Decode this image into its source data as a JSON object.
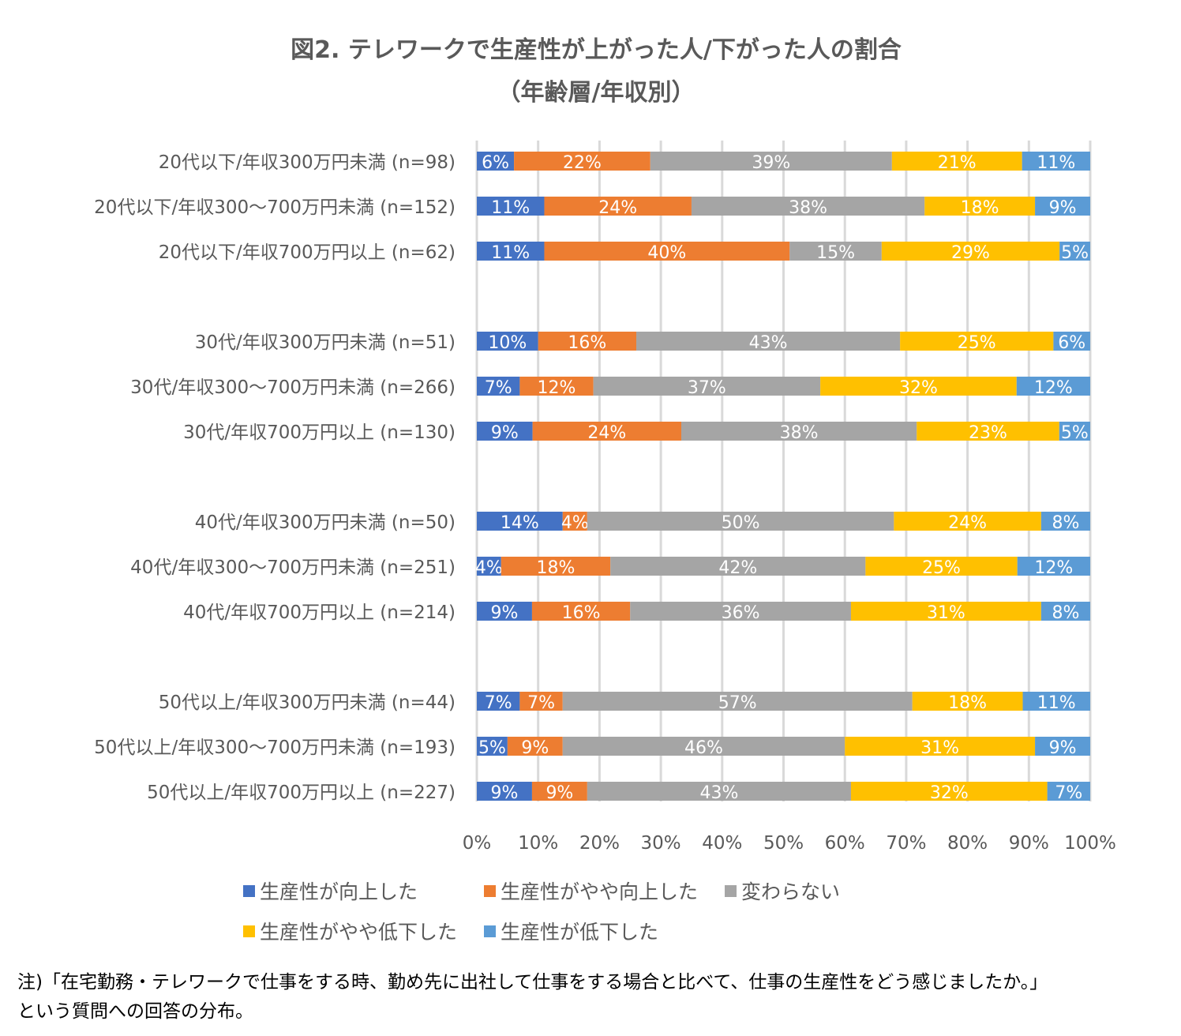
{
  "chart_data": {
    "type": "bar",
    "orientation": "horizontal-stacked-100",
    "title": "図2. テレワークで生産性が上がった人/下がった人の割合",
    "subtitle": "（年齢層/年収別）",
    "categories": [
      "20代以下/年収300万円未満 (n=98)",
      "20代以下/年収300～700万円未満 (n=152)",
      "20代以下/年収700万円以上 (n=62)",
      "30代/年収300万円未満 (n=51)",
      "30代/年収300～700万円未満 (n=266)",
      "30代/年収700万円以上 (n=130)",
      "40代/年収300万円未満 (n=50)",
      "40代/年収300～700万円未満 (n=251)",
      "40代/年収700万円以上 (n=214)",
      "50代以上/年収300万円未満 (n=44)",
      "50代以上/年収300～700万円未満 (n=193)",
      "50代以上/年収700万円以上 (n=227)"
    ],
    "series": [
      {
        "name": "生産性が向上した",
        "color": "#4472C4",
        "values": [
          6,
          11,
          11,
          10,
          7,
          9,
          14,
          4,
          9,
          7,
          5,
          9
        ]
      },
      {
        "name": "生産性がやや向上した",
        "color": "#ED7D31",
        "values": [
          22,
          24,
          40,
          16,
          12,
          24,
          4,
          18,
          16,
          7,
          9,
          9
        ]
      },
      {
        "name": "変わらない",
        "color": "#A5A5A5",
        "values": [
          39,
          38,
          15,
          43,
          37,
          38,
          50,
          42,
          36,
          57,
          46,
          43
        ]
      },
      {
        "name": "生産性がやや低下した",
        "color": "#FFC000",
        "values": [
          21,
          18,
          29,
          25,
          32,
          23,
          24,
          25,
          31,
          18,
          31,
          32
        ]
      },
      {
        "name": "生産性が低下した",
        "color": "#5B9BD5",
        "values": [
          11,
          9,
          5,
          6,
          12,
          5,
          8,
          12,
          8,
          11,
          9,
          7
        ]
      }
    ],
    "xlim": [
      0,
      100
    ],
    "x_ticks": [
      "0%",
      "10%",
      "20%",
      "30%",
      "40%",
      "50%",
      "60%",
      "70%",
      "80%",
      "90%",
      "100%"
    ],
    "grid": true,
    "legend_placement": "bottom",
    "data_label_suffix": "%"
  },
  "note": {
    "line1": "注)「在宅勤務・テレワークで仕事をする時、勤め先に出社して仕事をする場合と比べて、仕事の生産性をどう感じましたか。」",
    "line2": "という質問への回答の分布。"
  }
}
